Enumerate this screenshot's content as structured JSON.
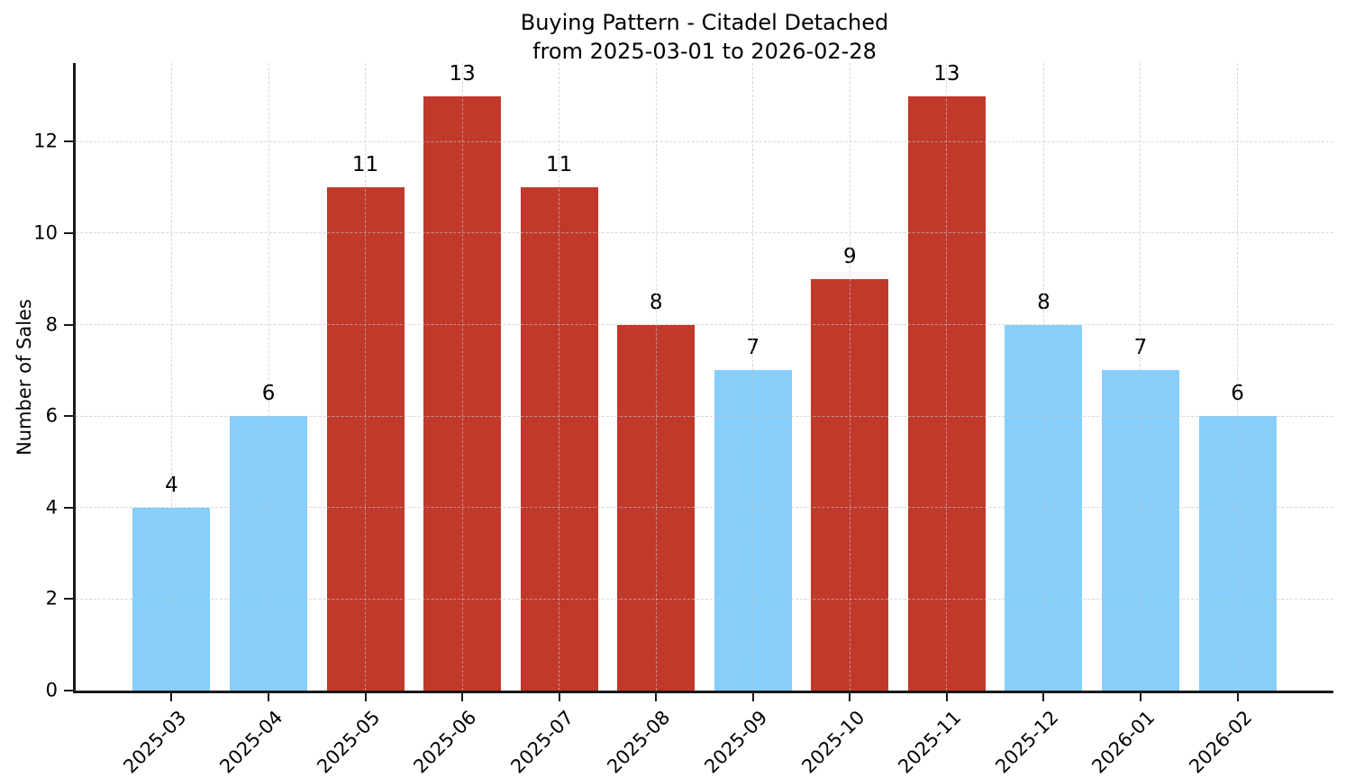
{
  "chart_data": {
    "type": "bar",
    "title": "Buying Pattern - Citadel Detached\nfrom 2025-03-01 to 2026-02-28",
    "ylabel": "Number of Sales",
    "categories": [
      "2025-03",
      "2025-04",
      "2025-05",
      "2025-06",
      "2025-07",
      "2025-08",
      "2025-09",
      "2025-10",
      "2025-11",
      "2025-12",
      "2026-01",
      "2026-02"
    ],
    "values": [
      4,
      6,
      11,
      13,
      11,
      8,
      7,
      9,
      13,
      8,
      7,
      6
    ],
    "bar_colors": [
      "#87CEFA",
      "#87CEFA",
      "#C0392B",
      "#C0392B",
      "#C0392B",
      "#C0392B",
      "#87CEFA",
      "#C0392B",
      "#C0392B",
      "#87CEFA",
      "#87CEFA",
      "#87CEFA"
    ],
    "yticks": [
      0,
      2,
      4,
      6,
      8,
      10,
      12
    ],
    "ylim": [
      0,
      13.72
    ],
    "grid": true,
    "legend_position": "none",
    "bar_width_fraction": 0.8
  },
  "colors": {
    "bar_blue": "#87CEFA",
    "bar_red": "#C0392B",
    "grid": "#c3c3c3",
    "axis": "#1a1a1a",
    "text": "#000000",
    "background": "#ffffff"
  }
}
